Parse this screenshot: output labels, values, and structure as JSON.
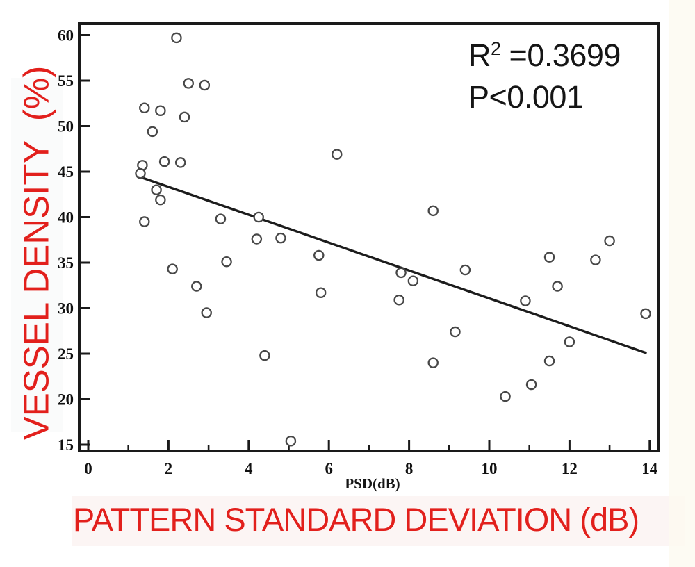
{
  "figure": {
    "y_axis_title": "VESSEL DENSITY  (%)",
    "x_axis_unit_label": "PSD(dB)",
    "x_axis_title": "PATTERN STANDARD DEVIATION (dB)",
    "annotation": {
      "r_base": "R",
      "r_sup": "2",
      "r_rest": " =0.3699",
      "p_line": "P<0.001"
    },
    "colors": {
      "accent_red": "#e2201c",
      "ink": "#1a1a1a",
      "point_stroke": "#474747",
      "line_black": "#1c1c1c"
    }
  },
  "chart_data": {
    "type": "scatter",
    "title": "",
    "xlabel": "PSD(dB)",
    "xlabel_full": "PATTERN STANDARD DEVIATION (dB)",
    "ylabel": "VESSEL DENSITY (%)",
    "xlim": [
      -0.23,
      14.21
    ],
    "ylim": [
      14.4,
      61.1
    ],
    "grid": false,
    "legend": null,
    "x_major_ticks": [
      0,
      2,
      4,
      6,
      8,
      10,
      12,
      14
    ],
    "x_minor_ticks": [
      1,
      3,
      5,
      7,
      9,
      11,
      13
    ],
    "y_major_ticks": [
      15,
      20,
      25,
      30,
      35,
      40,
      45,
      50,
      55,
      60
    ],
    "annotations": [
      "R² =0.3699",
      "P<0.001"
    ],
    "points": [
      [
        2.2,
        59.7
      ],
      [
        2.5,
        54.7
      ],
      [
        2.9,
        54.5
      ],
      [
        1.4,
        52.0
      ],
      [
        1.8,
        51.7
      ],
      [
        2.4,
        51.0
      ],
      [
        1.6,
        49.4
      ],
      [
        1.9,
        46.1
      ],
      [
        2.3,
        46.0
      ],
      [
        1.35,
        45.7
      ],
      [
        1.3,
        44.8
      ],
      [
        1.7,
        43.0
      ],
      [
        1.8,
        41.9
      ],
      [
        1.4,
        39.5
      ],
      [
        2.1,
        34.3
      ],
      [
        2.7,
        32.4
      ],
      [
        2.95,
        29.5
      ],
      [
        3.3,
        39.8
      ],
      [
        3.45,
        35.1
      ],
      [
        4.25,
        40.0
      ],
      [
        4.2,
        37.6
      ],
      [
        4.8,
        37.7
      ],
      [
        4.4,
        24.8
      ],
      [
        5.05,
        15.4
      ],
      [
        5.75,
        35.8
      ],
      [
        5.8,
        31.7
      ],
      [
        6.2,
        46.9
      ],
      [
        7.8,
        33.9
      ],
      [
        8.1,
        33.0
      ],
      [
        7.75,
        30.9
      ],
      [
        8.6,
        40.7
      ],
      [
        8.6,
        24.0
      ],
      [
        9.15,
        27.4
      ],
      [
        9.4,
        34.2
      ],
      [
        10.4,
        20.3
      ],
      [
        10.9,
        30.8
      ],
      [
        11.05,
        21.6
      ],
      [
        11.5,
        35.6
      ],
      [
        11.5,
        24.2
      ],
      [
        11.7,
        32.4
      ],
      [
        12.0,
        26.3
      ],
      [
        12.65,
        35.3
      ],
      [
        13.0,
        37.4
      ],
      [
        13.9,
        29.4
      ]
    ],
    "regression_line": {
      "x1": 1.3,
      "y1": 44.4,
      "x2": 13.9,
      "y2": 25.1
    }
  }
}
